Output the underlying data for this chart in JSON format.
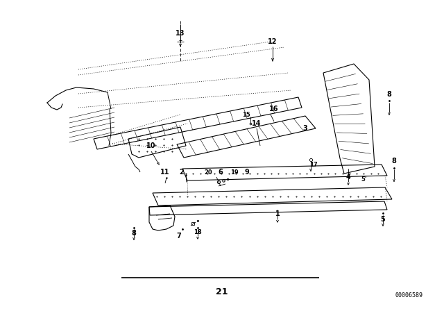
{
  "background_color": "#ffffff",
  "line_color": "#000000",
  "fig_width": 6.4,
  "fig_height": 4.48,
  "dpi": 100,
  "bottom_label": "21",
  "part_number": "00006589"
}
